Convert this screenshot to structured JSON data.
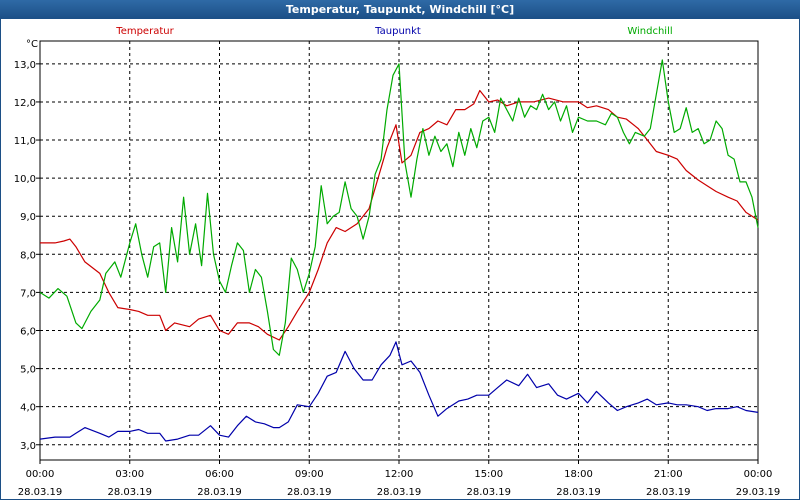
{
  "window": {
    "title": "Temperatur, Taupunkt, Windchill [°C]"
  },
  "chart_data": {
    "type": "line",
    "title": "Temperatur, Taupunkt, Windchill [°C]",
    "ylabel": "°C",
    "ylim": [
      2.6,
      13.6
    ],
    "xlim": [
      0,
      24
    ],
    "grid": true,
    "legend": [
      "Temperatur",
      "Taupunkt",
      "Windchill"
    ],
    "y_ticks": [
      "3,0",
      "4,0",
      "5,0",
      "6,0",
      "7,0",
      "8,0",
      "9,0",
      "10,0",
      "11,0",
      "12,0",
      "13,0"
    ],
    "x_ticks": [
      {
        "time": "00:00",
        "date": "28.03.19"
      },
      {
        "time": "03:00",
        "date": "28.03.19"
      },
      {
        "time": "06:00",
        "date": "28.03.19"
      },
      {
        "time": "09:00",
        "date": "28.03.19"
      },
      {
        "time": "12:00",
        "date": "28.03.19"
      },
      {
        "time": "15:00",
        "date": "28.03.19"
      },
      {
        "time": "18:00",
        "date": "28.03.19"
      },
      {
        "time": "21:00",
        "date": "28.03.19"
      },
      {
        "time": "00:00",
        "date": "29.03.19"
      }
    ],
    "series": [
      {
        "name": "Temperatur",
        "color": "#cc0000",
        "points": [
          [
            0,
            8.3
          ],
          [
            0.5,
            8.3
          ],
          [
            0.8,
            8.35
          ],
          [
            1,
            8.4
          ],
          [
            1.2,
            8.2
          ],
          [
            1.5,
            7.8
          ],
          [
            2,
            7.5
          ],
          [
            2.3,
            7.0
          ],
          [
            2.6,
            6.6
          ],
          [
            3,
            6.55
          ],
          [
            3.3,
            6.5
          ],
          [
            3.6,
            6.4
          ],
          [
            4,
            6.4
          ],
          [
            4.2,
            6.0
          ],
          [
            4.5,
            6.2
          ],
          [
            5,
            6.1
          ],
          [
            5.3,
            6.3
          ],
          [
            5.7,
            6.4
          ],
          [
            6,
            6.0
          ],
          [
            6.3,
            5.9
          ],
          [
            6.6,
            6.2
          ],
          [
            7,
            6.2
          ],
          [
            7.3,
            6.1
          ],
          [
            7.6,
            5.9
          ],
          [
            8,
            5.75
          ],
          [
            8.3,
            6.1
          ],
          [
            8.6,
            6.5
          ],
          [
            9,
            7.0
          ],
          [
            9.3,
            7.6
          ],
          [
            9.6,
            8.3
          ],
          [
            9.9,
            8.7
          ],
          [
            10.2,
            8.6
          ],
          [
            10.6,
            8.8
          ],
          [
            11,
            9.2
          ],
          [
            11.3,
            10.0
          ],
          [
            11.6,
            10.8
          ],
          [
            11.9,
            11.4
          ],
          [
            12.1,
            10.4
          ],
          [
            12.4,
            10.6
          ],
          [
            12.7,
            11.2
          ],
          [
            13,
            11.3
          ],
          [
            13.3,
            11.5
          ],
          [
            13.6,
            11.4
          ],
          [
            13.9,
            11.8
          ],
          [
            14.2,
            11.8
          ],
          [
            14.5,
            11.95
          ],
          [
            14.7,
            12.3
          ],
          [
            15,
            12.0
          ],
          [
            15.3,
            12.05
          ],
          [
            15.6,
            11.9
          ],
          [
            16,
            12.0
          ],
          [
            16.5,
            12.0
          ],
          [
            17,
            12.1
          ],
          [
            17.5,
            12.0
          ],
          [
            18,
            12.0
          ],
          [
            18.3,
            11.85
          ],
          [
            18.6,
            11.9
          ],
          [
            19,
            11.8
          ],
          [
            19.3,
            11.6
          ],
          [
            19.6,
            11.55
          ],
          [
            20,
            11.3
          ],
          [
            20.3,
            11.0
          ],
          [
            20.6,
            10.7
          ],
          [
            21,
            10.6
          ],
          [
            21.3,
            10.5
          ],
          [
            21.6,
            10.2
          ],
          [
            22,
            9.95
          ],
          [
            22.3,
            9.8
          ],
          [
            22.6,
            9.65
          ],
          [
            23,
            9.5
          ],
          [
            23.3,
            9.4
          ],
          [
            23.6,
            9.1
          ],
          [
            24,
            8.9
          ]
        ]
      },
      {
        "name": "Taupunkt",
        "color": "#0000aa",
        "points": [
          [
            0,
            3.15
          ],
          [
            0.5,
            3.2
          ],
          [
            1,
            3.2
          ],
          [
            1.2,
            3.3
          ],
          [
            1.5,
            3.45
          ],
          [
            2,
            3.3
          ],
          [
            2.3,
            3.2
          ],
          [
            2.6,
            3.35
          ],
          [
            3,
            3.35
          ],
          [
            3.3,
            3.4
          ],
          [
            3.6,
            3.3
          ],
          [
            4,
            3.3
          ],
          [
            4.2,
            3.1
          ],
          [
            4.6,
            3.15
          ],
          [
            5,
            3.25
          ],
          [
            5.3,
            3.25
          ],
          [
            5.7,
            3.5
          ],
          [
            6,
            3.25
          ],
          [
            6.3,
            3.2
          ],
          [
            6.6,
            3.5
          ],
          [
            6.9,
            3.75
          ],
          [
            7.2,
            3.6
          ],
          [
            7.5,
            3.55
          ],
          [
            7.8,
            3.45
          ],
          [
            8,
            3.45
          ],
          [
            8.3,
            3.6
          ],
          [
            8.6,
            4.05
          ],
          [
            9,
            4.0
          ],
          [
            9.3,
            4.35
          ],
          [
            9.6,
            4.8
          ],
          [
            9.9,
            4.9
          ],
          [
            10.2,
            5.45
          ],
          [
            10.5,
            5.0
          ],
          [
            10.8,
            4.7
          ],
          [
            11.1,
            4.7
          ],
          [
            11.4,
            5.1
          ],
          [
            11.7,
            5.35
          ],
          [
            11.9,
            5.7
          ],
          [
            12.1,
            5.1
          ],
          [
            12.4,
            5.2
          ],
          [
            12.7,
            4.9
          ],
          [
            13,
            4.3
          ],
          [
            13.3,
            3.75
          ],
          [
            13.6,
            3.95
          ],
          [
            14,
            4.15
          ],
          [
            14.3,
            4.2
          ],
          [
            14.6,
            4.3
          ],
          [
            15,
            4.3
          ],
          [
            15.3,
            4.5
          ],
          [
            15.6,
            4.7
          ],
          [
            16,
            4.55
          ],
          [
            16.3,
            4.85
          ],
          [
            16.6,
            4.5
          ],
          [
            17,
            4.6
          ],
          [
            17.3,
            4.3
          ],
          [
            17.6,
            4.2
          ],
          [
            18,
            4.35
          ],
          [
            18.3,
            4.1
          ],
          [
            18.6,
            4.4
          ],
          [
            19,
            4.1
          ],
          [
            19.3,
            3.9
          ],
          [
            19.6,
            4.0
          ],
          [
            20,
            4.1
          ],
          [
            20.3,
            4.2
          ],
          [
            20.6,
            4.05
          ],
          [
            21,
            4.1
          ],
          [
            21.3,
            4.05
          ],
          [
            21.6,
            4.05
          ],
          [
            22,
            4.0
          ],
          [
            22.3,
            3.9
          ],
          [
            22.6,
            3.95
          ],
          [
            23,
            3.95
          ],
          [
            23.3,
            4.0
          ],
          [
            23.6,
            3.9
          ],
          [
            24,
            3.85
          ]
        ]
      },
      {
        "name": "Windchill",
        "color": "#00aa00",
        "points": [
          [
            0,
            7.0
          ],
          [
            0.3,
            6.85
          ],
          [
            0.6,
            7.1
          ],
          [
            0.9,
            6.9
          ],
          [
            1.2,
            6.2
          ],
          [
            1.4,
            6.05
          ],
          [
            1.7,
            6.5
          ],
          [
            2,
            6.8
          ],
          [
            2.2,
            7.5
          ],
          [
            2.5,
            7.8
          ],
          [
            2.7,
            7.4
          ],
          [
            3,
            8.3
          ],
          [
            3.2,
            8.8
          ],
          [
            3.4,
            8.0
          ],
          [
            3.6,
            7.4
          ],
          [
            3.8,
            8.2
          ],
          [
            4,
            8.3
          ],
          [
            4.2,
            7.0
          ],
          [
            4.4,
            8.7
          ],
          [
            4.6,
            7.8
          ],
          [
            4.8,
            9.5
          ],
          [
            5,
            8.0
          ],
          [
            5.2,
            8.8
          ],
          [
            5.4,
            7.7
          ],
          [
            5.6,
            9.6
          ],
          [
            5.8,
            8.0
          ],
          [
            6,
            7.3
          ],
          [
            6.2,
            7.0
          ],
          [
            6.4,
            7.7
          ],
          [
            6.6,
            8.3
          ],
          [
            6.8,
            8.1
          ],
          [
            7,
            7.0
          ],
          [
            7.2,
            7.6
          ],
          [
            7.4,
            7.4
          ],
          [
            7.6,
            6.5
          ],
          [
            7.8,
            5.5
          ],
          [
            8,
            5.35
          ],
          [
            8.2,
            6.2
          ],
          [
            8.4,
            7.9
          ],
          [
            8.6,
            7.6
          ],
          [
            8.8,
            7.0
          ],
          [
            9,
            7.5
          ],
          [
            9.2,
            8.2
          ],
          [
            9.4,
            9.8
          ],
          [
            9.6,
            8.8
          ],
          [
            9.8,
            9.0
          ],
          [
            10,
            9.1
          ],
          [
            10.2,
            9.9
          ],
          [
            10.4,
            9.2
          ],
          [
            10.6,
            9.0
          ],
          [
            10.8,
            8.4
          ],
          [
            11,
            9.0
          ],
          [
            11.2,
            10.1
          ],
          [
            11.4,
            10.5
          ],
          [
            11.6,
            11.8
          ],
          [
            11.8,
            12.7
          ],
          [
            12,
            13.0
          ],
          [
            12.2,
            10.4
          ],
          [
            12.4,
            9.5
          ],
          [
            12.6,
            10.5
          ],
          [
            12.8,
            11.3
          ],
          [
            13,
            10.6
          ],
          [
            13.2,
            11.1
          ],
          [
            13.4,
            10.7
          ],
          [
            13.6,
            10.9
          ],
          [
            13.8,
            10.3
          ],
          [
            14,
            11.2
          ],
          [
            14.2,
            10.6
          ],
          [
            14.4,
            11.3
          ],
          [
            14.6,
            10.8
          ],
          [
            14.8,
            11.5
          ],
          [
            15,
            11.6
          ],
          [
            15.2,
            11.2
          ],
          [
            15.4,
            12.1
          ],
          [
            15.6,
            11.8
          ],
          [
            15.8,
            11.5
          ],
          [
            16,
            12.1
          ],
          [
            16.2,
            11.6
          ],
          [
            16.4,
            11.9
          ],
          [
            16.6,
            11.8
          ],
          [
            16.8,
            12.2
          ],
          [
            17,
            11.8
          ],
          [
            17.2,
            12.0
          ],
          [
            17.4,
            11.5
          ],
          [
            17.6,
            11.9
          ],
          [
            17.8,
            11.2
          ],
          [
            18,
            11.6
          ],
          [
            18.3,
            11.5
          ],
          [
            18.6,
            11.5
          ],
          [
            18.9,
            11.4
          ],
          [
            19.1,
            11.7
          ],
          [
            19.3,
            11.6
          ],
          [
            19.5,
            11.2
          ],
          [
            19.7,
            10.9
          ],
          [
            19.9,
            11.2
          ],
          [
            20.2,
            11.1
          ],
          [
            20.4,
            11.3
          ],
          [
            20.6,
            12.2
          ],
          [
            20.8,
            13.1
          ],
          [
            21,
            12.0
          ],
          [
            21.2,
            11.2
          ],
          [
            21.4,
            11.3
          ],
          [
            21.6,
            11.85
          ],
          [
            21.8,
            11.2
          ],
          [
            22,
            11.3
          ],
          [
            22.2,
            10.9
          ],
          [
            22.4,
            11.0
          ],
          [
            22.6,
            11.5
          ],
          [
            22.8,
            11.3
          ],
          [
            23,
            10.6
          ],
          [
            23.2,
            10.5
          ],
          [
            23.4,
            9.9
          ],
          [
            23.6,
            9.9
          ],
          [
            23.8,
            9.5
          ],
          [
            24,
            8.7
          ]
        ]
      }
    ]
  }
}
